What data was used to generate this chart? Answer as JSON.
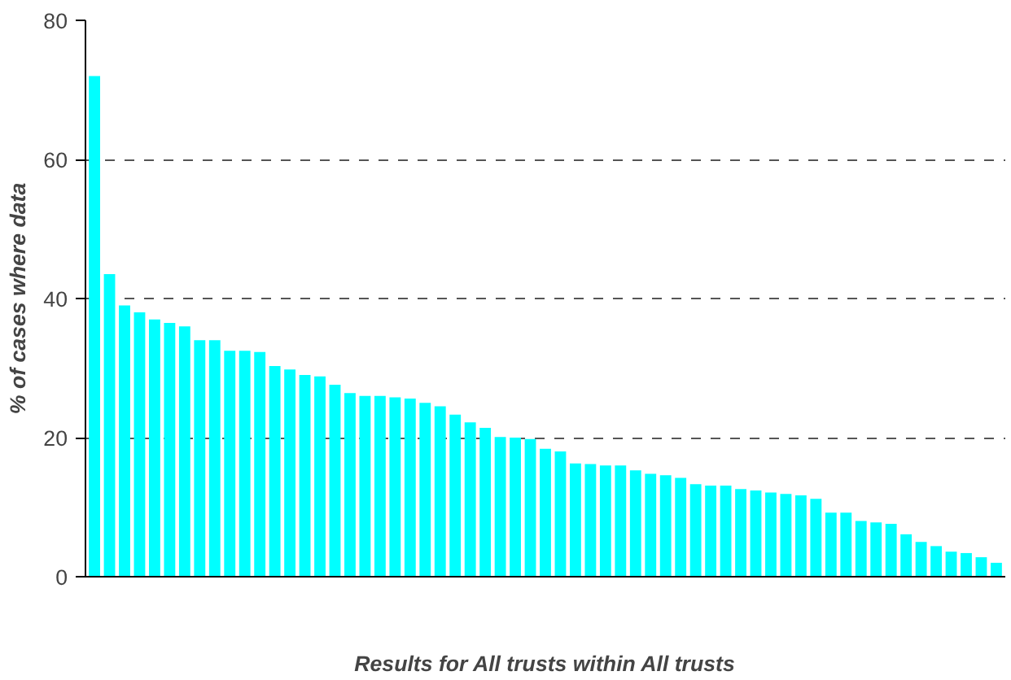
{
  "chart_data": {
    "type": "bar",
    "xlabel": "Results for All trusts within All trusts",
    "ylabel": "% of cases where data",
    "categories": [
      null,
      null,
      null,
      null,
      null,
      null,
      null,
      null,
      null,
      null,
      null,
      null,
      null,
      null,
      null,
      null,
      null,
      null,
      null,
      null,
      null,
      null,
      null,
      null,
      null,
      null,
      null,
      null,
      null,
      null,
      null,
      null,
      null,
      null,
      null,
      null,
      null,
      null,
      null,
      null,
      null,
      null,
      null,
      null,
      null,
      null,
      null,
      null,
      null,
      null,
      null,
      null,
      null,
      null,
      null,
      null,
      null,
      null,
      null,
      null,
      null
    ],
    "values": [
      72,
      43.5,
      39,
      38,
      37,
      36.5,
      36,
      34,
      34,
      32.5,
      32.5,
      32.3,
      30.3,
      29.8,
      29,
      28.8,
      27.6,
      26.4,
      26,
      26,
      25.8,
      25.6,
      25,
      24.5,
      23.3,
      22.2,
      21.4,
      20.1,
      20,
      19.8,
      18.4,
      18,
      16.3,
      16.2,
      16,
      16,
      15.3,
      14.8,
      14.6,
      14.2,
      13.3,
      13.1,
      13.1,
      12.6,
      12.4,
      12.1,
      11.9,
      11.7,
      11.2,
      9.2,
      9.2,
      8,
      7.8,
      7.6,
      6.1,
      5,
      4.4,
      3.6,
      3.4,
      2.8,
      2
    ],
    "color": "#00ffff",
    "ylim": [
      0,
      80
    ],
    "yticks": [
      0,
      20,
      40,
      60,
      80
    ],
    "grid": "y"
  }
}
